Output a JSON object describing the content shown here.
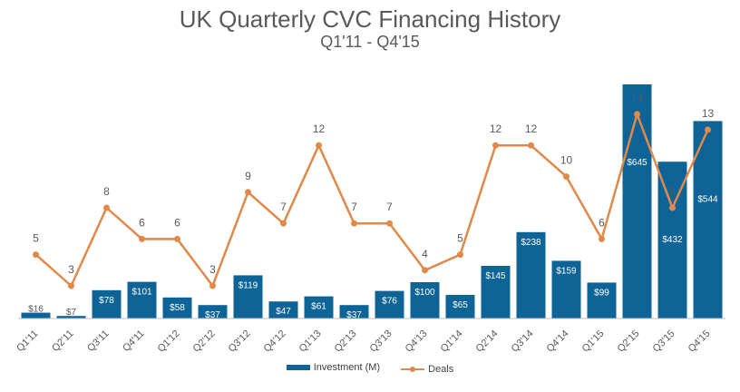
{
  "title": "UK Quarterly CVC Financing History",
  "subtitle": "Q1'11 - Q4'15",
  "colors": {
    "bar": "#0e6496",
    "line": "#e0894a",
    "label": "#595959"
  },
  "chart_data": {
    "type": "bar",
    "title": "UK Quarterly CVC Financing History",
    "subtitle": "Q1'11 - Q4'15",
    "categories": [
      "Q1'11",
      "Q2'11",
      "Q3'11",
      "Q4'11",
      "Q1'12",
      "Q2'12",
      "Q3'12",
      "Q4'12",
      "Q1'13",
      "Q2'13",
      "Q3'13",
      "Q4'13",
      "Q1'14",
      "Q2'14",
      "Q3'14",
      "Q4'14",
      "Q1'15",
      "Q2'15",
      "Q3'15",
      "Q4'15"
    ],
    "series": [
      {
        "name": "Investment (M)",
        "type": "bar",
        "values": [
          16,
          7,
          78,
          101,
          58,
          37,
          119,
          47,
          61,
          37,
          76,
          100,
          65,
          145,
          238,
          159,
          99,
          645,
          432,
          544
        ],
        "labels": [
          "$16",
          "$7",
          "$78",
          "$101",
          "$58",
          "$37",
          "$119",
          "$47",
          "$61",
          "$37",
          "$76",
          "$100",
          "$65",
          "$145",
          "$238",
          "$159",
          "$99",
          "$645",
          "$432",
          "$544"
        ]
      },
      {
        "name": "Deals",
        "type": "line",
        "values": [
          5,
          3,
          8,
          6,
          6,
          3,
          9,
          7,
          12,
          7,
          7,
          4,
          5,
          12,
          12,
          10,
          6,
          14,
          8,
          13
        ]
      }
    ],
    "legend": "bottom",
    "grid": false
  }
}
